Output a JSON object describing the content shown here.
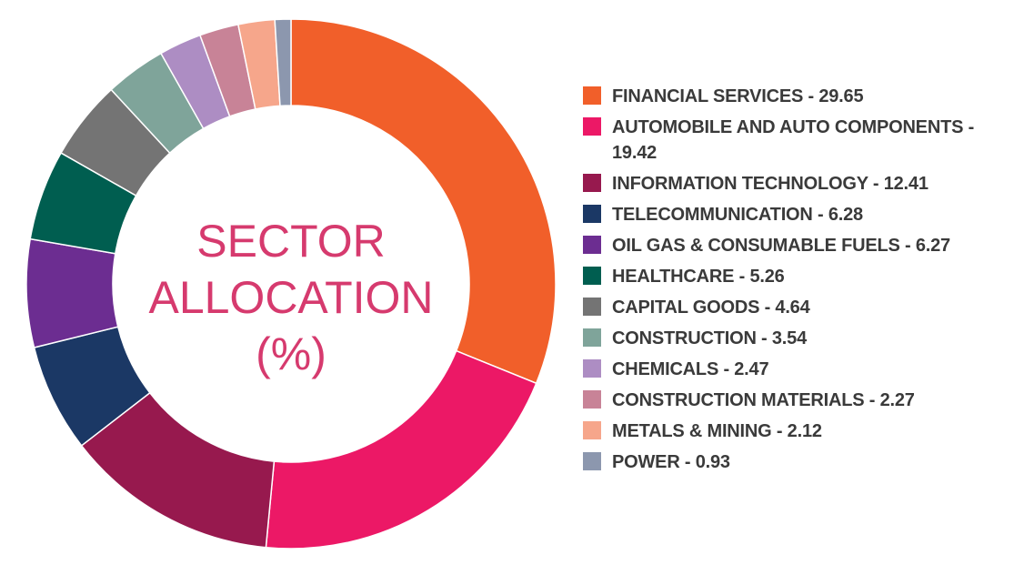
{
  "chart_data": {
    "type": "pie",
    "title": "SECTOR ALLOCATION (%)",
    "center_lines": [
      "SECTOR",
      "ALLOCATION",
      "(%)"
    ],
    "categories": [
      "FINANCIAL SERVICES",
      "AUTOMOBILE AND AUTO COMPONENTS",
      "INFORMATION TECHNOLOGY",
      "TELECOMMUNICATION",
      "OIL GAS & CONSUMABLE FUELS",
      "HEALTHCARE",
      "CAPITAL GOODS",
      "CONSTRUCTION",
      "CHEMICALS",
      "CONSTRUCTION MATERIALS",
      "METALS & MINING",
      "POWER"
    ],
    "values": [
      29.65,
      19.42,
      12.41,
      6.28,
      6.27,
      5.26,
      4.64,
      3.54,
      2.47,
      2.27,
      2.12,
      0.93
    ],
    "legend_labels": [
      "FINANCIAL SERVICES - 29.65",
      "AUTOMOBILE AND AUTO COMPONENTS - 19.42",
      "INFORMATION TECHNOLOGY - 12.41",
      "TELECOMMUNICATION - 6.28",
      "OIL GAS & CONSUMABLE FUELS - 6.27",
      "HEALTHCARE - 5.26",
      "CAPITAL GOODS - 4.64",
      "CONSTRUCTION - 3.54",
      "CHEMICALS - 2.47",
      "CONSTRUCTION MATERIALS - 2.27",
      "METALS & MINING - 2.12",
      "POWER - 0.93"
    ],
    "colors": [
      "#f15f2a",
      "#ec1866",
      "#97194e",
      "#1b3865",
      "#6c2d91",
      "#005e50",
      "#747474",
      "#7fa49a",
      "#ad8dc3",
      "#c88397",
      "#f6a68b",
      "#8c97ae"
    ],
    "legend_placement": "right"
  }
}
